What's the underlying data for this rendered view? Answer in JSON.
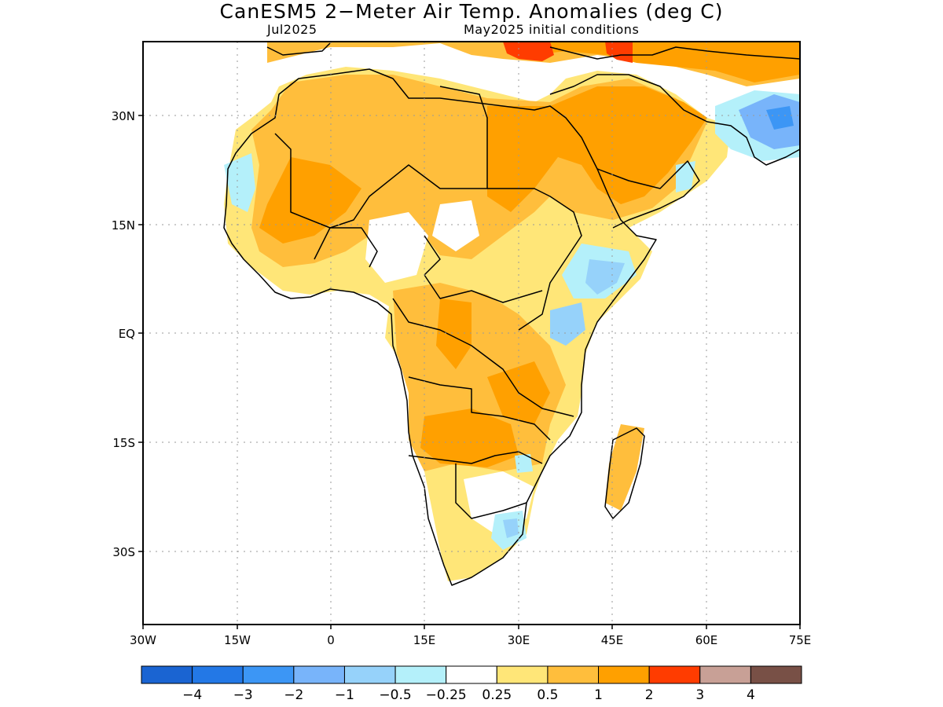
{
  "title": "CanESM5 2−Meter Air Temp. Anomalies (deg C)",
  "subtitle_left": "Jul2025",
  "subtitle_right": "May2025 initial conditions",
  "lat_labels": [
    "30N",
    "15N",
    "EQ",
    "15S",
    "30S"
  ],
  "lon_labels": [
    "30W",
    "15W",
    "0",
    "15E",
    "30E",
    "45E",
    "60E",
    "75E"
  ],
  "colorbar": {
    "colors": [
      "#1a64d2",
      "#2378e6",
      "#3c96f5",
      "#78b4fa",
      "#96d2fa",
      "#b4f0fa",
      "#ffffff",
      "#ffe678",
      "#ffbe3c",
      "#ffa000",
      "#ff3c00",
      "#c8a096",
      "#785046"
    ],
    "labels": [
      "−4",
      "−3",
      "−2",
      "−1",
      "−0.5",
      "−0.25",
      "0.25",
      "0.5",
      "1",
      "2",
      "3",
      "4"
    ]
  }
}
